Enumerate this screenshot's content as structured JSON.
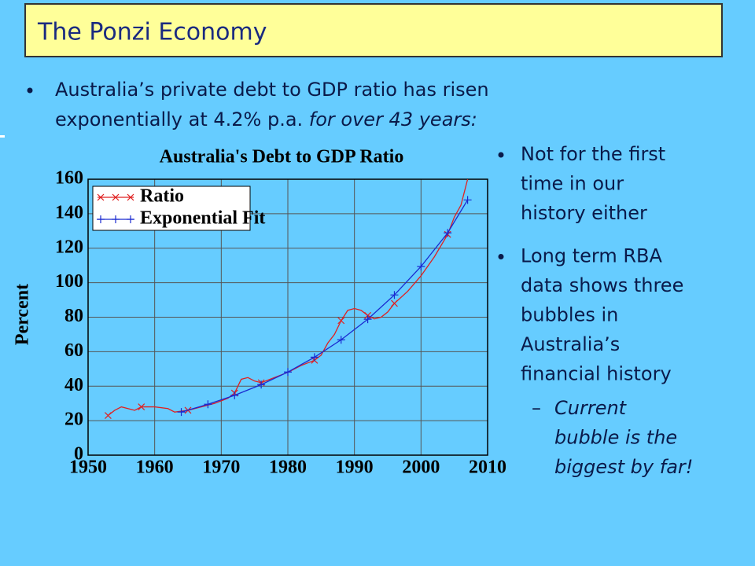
{
  "slide": {
    "title": "The Ponzi Economy",
    "main_bullet": {
      "lines": [
        "Australia’s private debt to GDP ratio has risen",
        "exponentially at 4.2% p.a. "
      ],
      "emphasis": "for over 43 years:"
    },
    "side_bullets": [
      {
        "lines": [
          "Not for the first",
          "time in our",
          "history either"
        ]
      },
      {
        "lines": [
          "Long term RBA",
          "data shows three",
          "bubbles in",
          "Australia’s",
          "financial history"
        ]
      }
    ],
    "sub_bullet": {
      "marker": "–",
      "lines": [
        "Current",
        "bubble is the",
        "biggest by far!"
      ]
    }
  },
  "chart_data": {
    "type": "line",
    "title": "Australia's Debt to GDP Ratio",
    "y_label": "Percent",
    "xlim": [
      1950,
      2010
    ],
    "xticks": [
      1950,
      1960,
      1970,
      1980,
      1990,
      2000,
      2010
    ],
    "ylim": [
      0,
      160
    ],
    "yticks": [
      0,
      20,
      40,
      60,
      80,
      100,
      120,
      140,
      160
    ],
    "grid": true,
    "legend": "upper left",
    "series": [
      {
        "name": "Ratio",
        "color": "#e02020",
        "marker": "x",
        "x": [
          1953,
          1954,
          1955,
          1957,
          1958,
          1960,
          1962,
          1963,
          1965,
          1967,
          1969,
          1971,
          1972,
          1973,
          1974,
          1975,
          1976,
          1978,
          1980,
          1982,
          1984,
          1985,
          1986,
          1987,
          1988,
          1989,
          1990,
          1991,
          1992,
          1993,
          1994,
          1995,
          1996,
          1998,
          2000,
          2002,
          2004,
          2005,
          2006,
          2007
        ],
        "values": [
          23,
          26,
          28,
          26,
          28,
          28,
          27,
          25,
          26,
          28,
          30,
          33,
          36,
          44,
          45,
          43,
          42,
          45,
          48,
          52,
          55,
          58,
          65,
          70,
          78,
          84,
          85,
          84,
          81,
          79,
          80,
          83,
          88,
          95,
          104,
          115,
          128,
          138,
          145,
          160
        ]
      },
      {
        "name": "Exponential Fit",
        "color": "#1a2ad0",
        "marker": "+",
        "x": [
          1964,
          1968,
          1972,
          1976,
          1980,
          1984,
          1988,
          1992,
          1996,
          2000,
          2004,
          2007
        ],
        "values": [
          25,
          29.5,
          34.7,
          40.9,
          48.2,
          56.8,
          66.9,
          78.8,
          92.9,
          109.4,
          128.9,
          148
        ]
      }
    ]
  }
}
